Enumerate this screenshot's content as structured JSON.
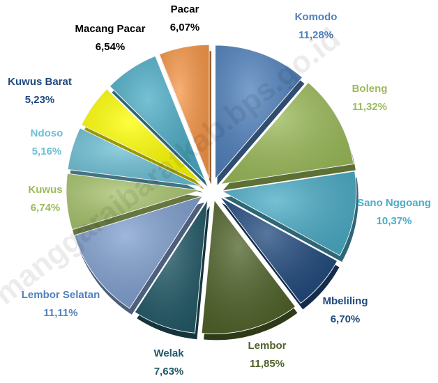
{
  "chart_data": {
    "type": "pie",
    "watermark": "manggaraibaratkab.bps.go.id",
    "categories": [
      "Komodo",
      "Boleng",
      "Sano Nggoang",
      "Mbeliling",
      "Lembor",
      "Welak",
      "Lembor Selatan",
      "Kuwus",
      "Ndoso",
      "Kuwus Barat",
      "Macang Pacar",
      "Pacar"
    ],
    "values": [
      11.28,
      11.32,
      10.37,
      6.7,
      11.85,
      7.63,
      11.11,
      6.74,
      5.16,
      5.23,
      6.54,
      6.07
    ],
    "value_labels": [
      "11,28%",
      "11,32%",
      "10,37%",
      "6,70%",
      "11,85%",
      "7,63%",
      "11,11%",
      "6,74%",
      "5,16%",
      "5,23%",
      "6,54%",
      "6,07%"
    ],
    "colors": [
      "#4f81bd",
      "#9bbb59",
      "#4bacc6",
      "#1f497d",
      "#4f6228",
      "#215967",
      "#7f9fcf",
      "#a8c46d",
      "#6cc0d6",
      "#ffff00",
      "#4bacc6",
      "#f79646"
    ],
    "label_colors": [
      "#4f81bd",
      "#9bbb59",
      "#4bacc6",
      "#1f497d",
      "#4f6228",
      "#215967",
      "#4f81bd",
      "#9bbb59",
      "#6cc0d6",
      "#1f497d",
      "#000000",
      "#000000"
    ]
  }
}
